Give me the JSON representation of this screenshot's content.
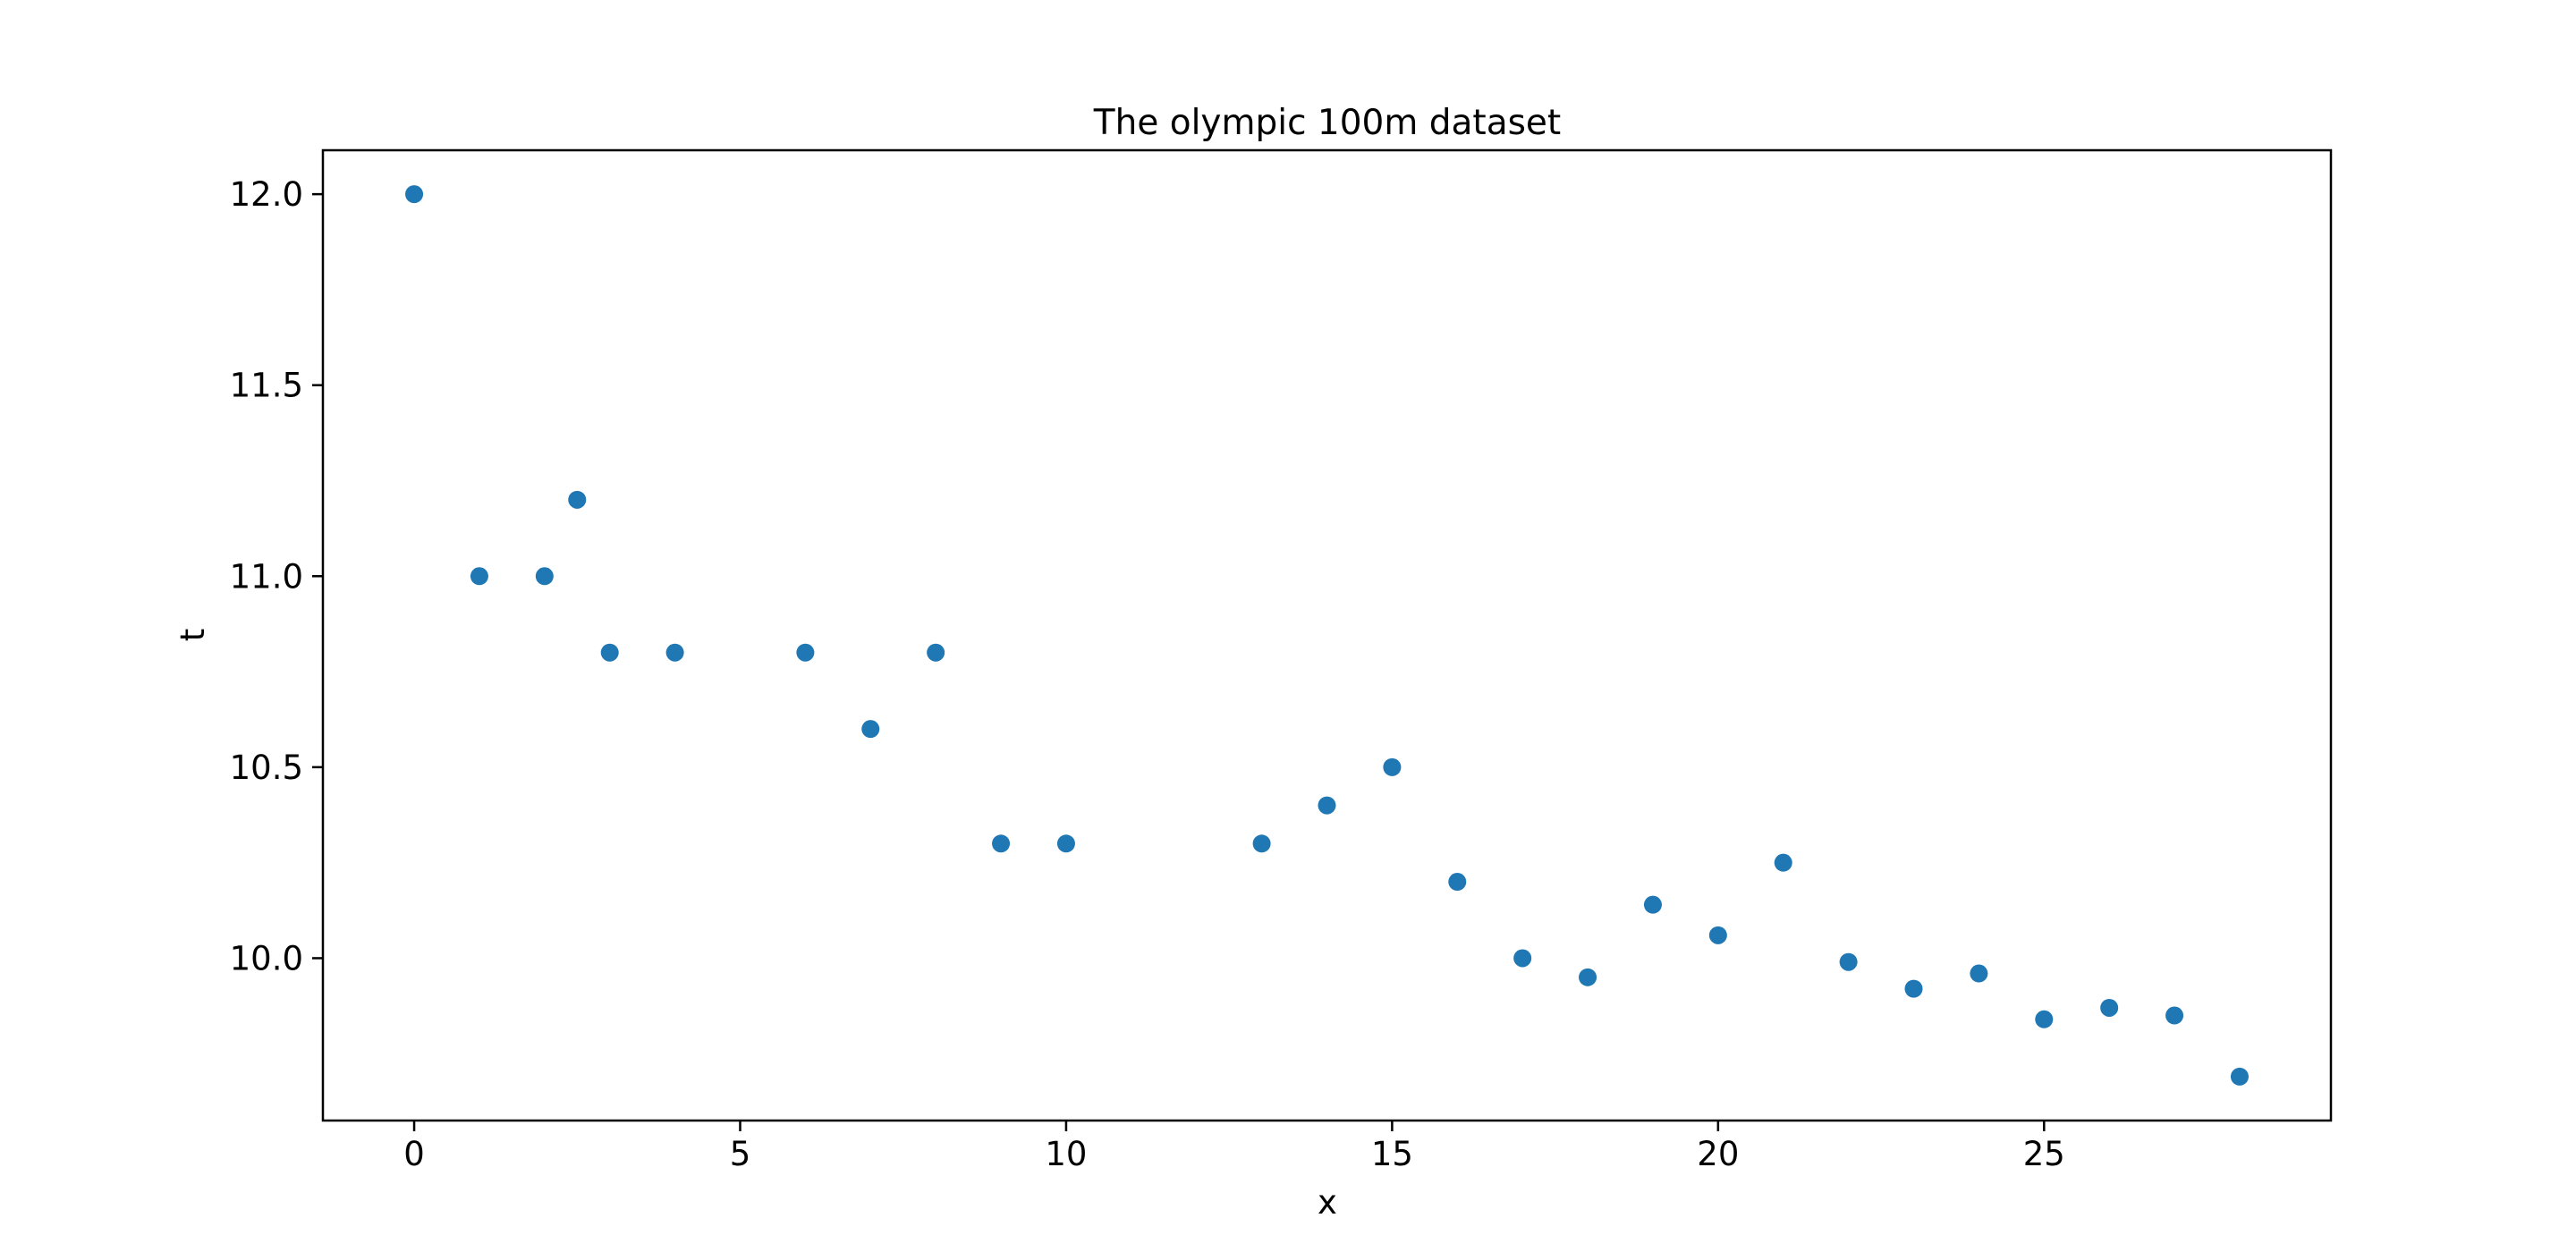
{
  "chart_data": {
    "type": "scatter",
    "title": "The olympic 100m dataset",
    "xlabel": "x",
    "ylabel": "t",
    "xlim": [
      -1.4,
      29.4
    ],
    "ylim": [
      9.575,
      12.115
    ],
    "xticks": [
      0,
      5,
      10,
      15,
      20,
      25
    ],
    "xtick_labels": [
      "0",
      "5",
      "10",
      "15",
      "20",
      "25"
    ],
    "yticks": [
      10.0,
      10.5,
      11.0,
      11.5,
      12.0
    ],
    "ytick_labels": [
      "10.0",
      "10.5",
      "11.0",
      "11.5",
      "12.0"
    ],
    "grid": false,
    "marker_color": "#1f77b4",
    "series": [
      {
        "points": [
          {
            "x": 0,
            "y": 12.0
          },
          {
            "x": 1,
            "y": 11.0
          },
          {
            "x": 2,
            "y": 11.0
          },
          {
            "x": 2.5,
            "y": 11.2
          },
          {
            "x": 3,
            "y": 10.8
          },
          {
            "x": 4,
            "y": 10.8
          },
          {
            "x": 6,
            "y": 10.8
          },
          {
            "x": 7,
            "y": 10.6
          },
          {
            "x": 8,
            "y": 10.8
          },
          {
            "x": 9,
            "y": 10.3
          },
          {
            "x": 10,
            "y": 10.3
          },
          {
            "x": 13,
            "y": 10.3
          },
          {
            "x": 14,
            "y": 10.4
          },
          {
            "x": 15,
            "y": 10.5
          },
          {
            "x": 16,
            "y": 10.2
          },
          {
            "x": 17,
            "y": 10.0
          },
          {
            "x": 18,
            "y": 9.95
          },
          {
            "x": 19,
            "y": 10.14
          },
          {
            "x": 20,
            "y": 10.06
          },
          {
            "x": 21,
            "y": 10.25
          },
          {
            "x": 22,
            "y": 9.99
          },
          {
            "x": 23,
            "y": 9.92
          },
          {
            "x": 24,
            "y": 9.96
          },
          {
            "x": 25,
            "y": 9.84
          },
          {
            "x": 26,
            "y": 9.87
          },
          {
            "x": 27,
            "y": 9.85
          },
          {
            "x": 28,
            "y": 9.69
          }
        ]
      }
    ]
  }
}
